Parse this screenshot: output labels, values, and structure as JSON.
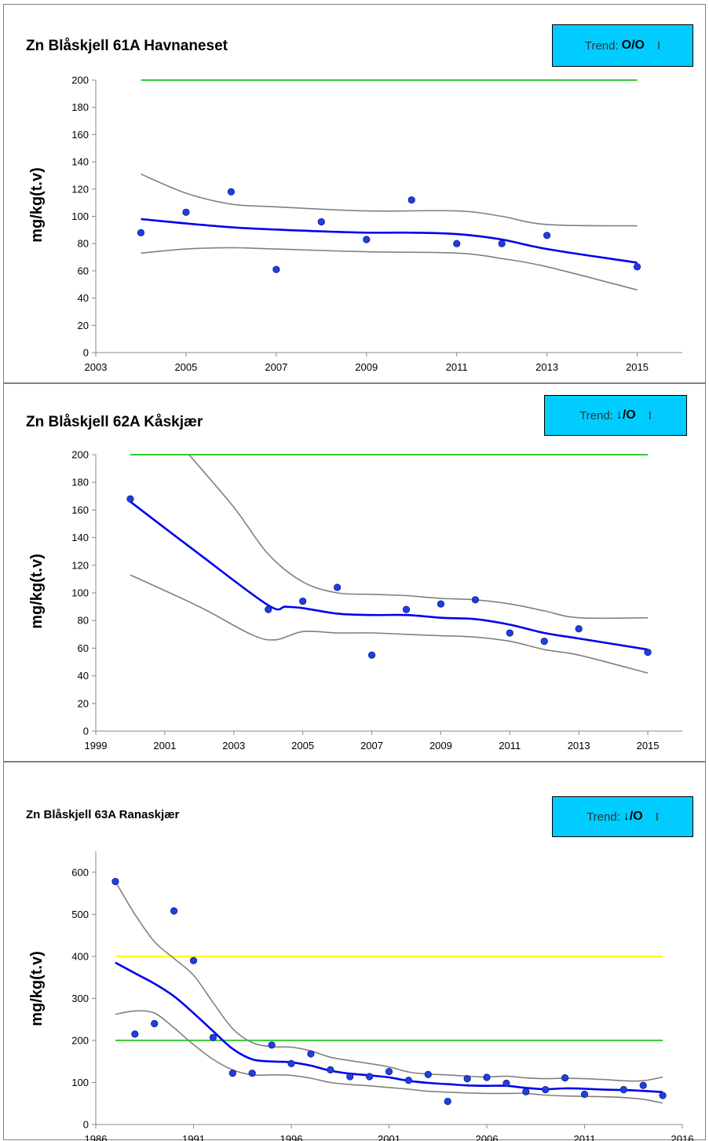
{
  "panels": [
    {
      "title": "Zn Blåskjell  61A Havnaneset",
      "trend": {
        "label": "Trend:",
        "symbol": "O/O",
        "class": "I"
      },
      "chart_data": {
        "type": "scatter",
        "ylabel": "mg/kg(t.v)",
        "xlim": [
          2003,
          2016
        ],
        "ylim": [
          0,
          200
        ],
        "xticks": [
          2003,
          2005,
          2007,
          2009,
          2011,
          2013,
          2015
        ],
        "yticks": [
          0,
          20,
          40,
          60,
          80,
          100,
          120,
          140,
          160,
          180,
          200
        ],
        "points": [
          [
            2004,
            88
          ],
          [
            2005,
            103
          ],
          [
            2006,
            118
          ],
          [
            2007,
            61
          ],
          [
            2008,
            96
          ],
          [
            2009,
            83
          ],
          [
            2010,
            112
          ],
          [
            2011,
            80
          ],
          [
            2012,
            80
          ],
          [
            2013,
            86
          ],
          [
            2015,
            63
          ]
        ],
        "trend_line": [
          [
            2004,
            98
          ],
          [
            2006,
            92
          ],
          [
            2008,
            89
          ],
          [
            2009,
            88
          ],
          [
            2010,
            88
          ],
          [
            2011,
            87
          ],
          [
            2012,
            83
          ],
          [
            2013,
            76
          ],
          [
            2015,
            66
          ]
        ],
        "upper_band": [
          [
            2004,
            131
          ],
          [
            2005,
            117
          ],
          [
            2006,
            109
          ],
          [
            2007,
            107
          ],
          [
            2009,
            104
          ],
          [
            2011,
            104
          ],
          [
            2012,
            100
          ],
          [
            2013,
            94
          ],
          [
            2015,
            93
          ]
        ],
        "lower_band": [
          [
            2004,
            73
          ],
          [
            2005,
            76
          ],
          [
            2006,
            77
          ],
          [
            2007,
            76
          ],
          [
            2009,
            74
          ],
          [
            2011,
            73
          ],
          [
            2012,
            69
          ],
          [
            2013,
            63
          ],
          [
            2015,
            46
          ]
        ],
        "reference_lines": [
          {
            "y": 200,
            "color": "#33cc33",
            "x": [
              2004,
              2015
            ]
          }
        ]
      }
    },
    {
      "title": "Zn Blåskjell  62A Kåskjær",
      "trend": {
        "label": "Trend:",
        "symbol": "↓/O",
        "class": "I"
      },
      "chart_data": {
        "type": "scatter",
        "ylabel": "mg/kg(t.v)",
        "xlim": [
          1999,
          2016
        ],
        "ylim": [
          0,
          200
        ],
        "xticks": [
          1999,
          2001,
          2003,
          2005,
          2007,
          2009,
          2011,
          2013,
          2015
        ],
        "yticks": [
          0,
          20,
          40,
          60,
          80,
          100,
          120,
          140,
          160,
          180,
          200
        ],
        "points": [
          [
            2000,
            168
          ],
          [
            2004,
            88
          ],
          [
            2005,
            94
          ],
          [
            2006,
            104
          ],
          [
            2007,
            55
          ],
          [
            2008,
            88
          ],
          [
            2009,
            92
          ],
          [
            2010,
            95
          ],
          [
            2011,
            71
          ],
          [
            2012,
            65
          ],
          [
            2013,
            74
          ],
          [
            2015,
            57
          ]
        ],
        "trend_line": [
          [
            2000,
            166
          ],
          [
            2002,
            128
          ],
          [
            2004,
            91
          ],
          [
            2004.5,
            90
          ],
          [
            2005,
            89
          ],
          [
            2006,
            85
          ],
          [
            2007,
            84
          ],
          [
            2008,
            84
          ],
          [
            2009,
            82
          ],
          [
            2010,
            81
          ],
          [
            2011,
            77
          ],
          [
            2012,
            71
          ],
          [
            2013,
            67
          ],
          [
            2015,
            59
          ]
        ],
        "upper_band": [
          [
            2001.7,
            200
          ],
          [
            2003,
            162
          ],
          [
            2004,
            128
          ],
          [
            2005,
            108
          ],
          [
            2006,
            100
          ],
          [
            2007,
            99
          ],
          [
            2008,
            98
          ],
          [
            2009,
            96
          ],
          [
            2010,
            95
          ],
          [
            2011,
            92
          ],
          [
            2012,
            87
          ],
          [
            2013,
            82
          ],
          [
            2015,
            82
          ]
        ],
        "lower_band": [
          [
            2000,
            113
          ],
          [
            2002,
            90
          ],
          [
            2003.5,
            70
          ],
          [
            2004.2,
            66
          ],
          [
            2005,
            72
          ],
          [
            2006,
            71
          ],
          [
            2007,
            71
          ],
          [
            2008,
            70
          ],
          [
            2009,
            69
          ],
          [
            2010,
            68
          ],
          [
            2011,
            65
          ],
          [
            2012,
            59
          ],
          [
            2013,
            55
          ],
          [
            2015,
            42
          ]
        ],
        "reference_lines": [
          {
            "y": 200,
            "color": "#33cc33",
            "x": [
              2000,
              2015
            ]
          }
        ]
      }
    },
    {
      "title": "Zn Blåskjell  63A Ranaskjær",
      "trend": {
        "label": "Trend:",
        "symbol": "↓/O",
        "class": "I"
      },
      "chart_data": {
        "type": "scatter",
        "ylabel": "mg/kg(t.v)",
        "xlim": [
          1986,
          2016
        ],
        "ylim": [
          0,
          650
        ],
        "xticks": [
          1986,
          1991,
          1996,
          2001,
          2006,
          2011,
          2016
        ],
        "yticks": [
          0,
          100,
          200,
          300,
          400,
          500,
          600
        ],
        "points": [
          [
            1987,
            578
          ],
          [
            1988,
            215
          ],
          [
            1989,
            240
          ],
          [
            1990,
            508
          ],
          [
            1991,
            390
          ],
          [
            1992,
            207
          ],
          [
            1993,
            122
          ],
          [
            1994,
            122
          ],
          [
            1995,
            189
          ],
          [
            1996,
            145
          ],
          [
            1997,
            168
          ],
          [
            1998,
            130
          ],
          [
            1999,
            114
          ],
          [
            2000,
            114
          ],
          [
            2001,
            126
          ],
          [
            2002,
            105
          ],
          [
            2003,
            119
          ],
          [
            2004,
            55
          ],
          [
            2005,
            109
          ],
          [
            2006,
            112
          ],
          [
            2007,
            98
          ],
          [
            2008,
            78
          ],
          [
            2009,
            83
          ],
          [
            2010,
            111
          ],
          [
            2011,
            72
          ],
          [
            2013,
            83
          ],
          [
            2014,
            93
          ],
          [
            2015,
            69
          ]
        ],
        "trend_line": [
          [
            1987,
            385
          ],
          [
            1988,
            360
          ],
          [
            1989,
            335
          ],
          [
            1990,
            305
          ],
          [
            1991,
            265
          ],
          [
            1992,
            222
          ],
          [
            1993,
            180
          ],
          [
            1994,
            155
          ],
          [
            1995,
            150
          ],
          [
            1996,
            148
          ],
          [
            1997,
            140
          ],
          [
            1998,
            128
          ],
          [
            1999,
            121
          ],
          [
            2000,
            117
          ],
          [
            2001,
            112
          ],
          [
            2002,
            104
          ],
          [
            2003,
            99
          ],
          [
            2004,
            96
          ],
          [
            2005,
            93
          ],
          [
            2006,
            92
          ],
          [
            2007,
            92
          ],
          [
            2008,
            87
          ],
          [
            2009,
            84
          ],
          [
            2010,
            86
          ],
          [
            2011,
            85
          ],
          [
            2012,
            83
          ],
          [
            2013,
            82
          ],
          [
            2014,
            80
          ],
          [
            2015,
            77
          ]
        ],
        "upper_band": [
          [
            1987,
            578
          ],
          [
            1988,
            500
          ],
          [
            1989,
            435
          ],
          [
            1990,
            395
          ],
          [
            1991,
            355
          ],
          [
            1992,
            290
          ],
          [
            1993,
            228
          ],
          [
            1994,
            195
          ],
          [
            1995,
            185
          ],
          [
            1996,
            184
          ],
          [
            1997,
            175
          ],
          [
            1998,
            160
          ],
          [
            1999,
            152
          ],
          [
            2000,
            145
          ],
          [
            2001,
            137
          ],
          [
            2002,
            125
          ],
          [
            2003,
            120
          ],
          [
            2004,
            118
          ],
          [
            2005,
            115
          ],
          [
            2006,
            113
          ],
          [
            2007,
            115
          ],
          [
            2008,
            111
          ],
          [
            2009,
            109
          ],
          [
            2010,
            110
          ],
          [
            2011,
            109
          ],
          [
            2012,
            107
          ],
          [
            2013,
            104
          ],
          [
            2014,
            104
          ],
          [
            2015,
            113
          ]
        ],
        "lower_band": [
          [
            1987,
            262
          ],
          [
            1988,
            270
          ],
          [
            1989,
            265
          ],
          [
            1990,
            230
          ],
          [
            1991,
            190
          ],
          [
            1992,
            155
          ],
          [
            1993,
            130
          ],
          [
            1994,
            118
          ],
          [
            1995,
            118
          ],
          [
            1996,
            117
          ],
          [
            1997,
            110
          ],
          [
            1998,
            100
          ],
          [
            1999,
            95
          ],
          [
            2000,
            92
          ],
          [
            2001,
            88
          ],
          [
            2002,
            84
          ],
          [
            2003,
            79
          ],
          [
            2004,
            77
          ],
          [
            2005,
            75
          ],
          [
            2006,
            74
          ],
          [
            2007,
            74
          ],
          [
            2008,
            74
          ],
          [
            2009,
            70
          ],
          [
            2010,
            68
          ],
          [
            2011,
            67
          ],
          [
            2012,
            66
          ],
          [
            2013,
            64
          ],
          [
            2014,
            60
          ],
          [
            2015,
            51
          ]
        ],
        "reference_lines": [
          {
            "y": 400,
            "color": "#ffff00",
            "x": [
              1987,
              2015
            ]
          },
          {
            "y": 200,
            "color": "#33cc33",
            "x": [
              1987,
              2015
            ]
          }
        ]
      }
    }
  ]
}
